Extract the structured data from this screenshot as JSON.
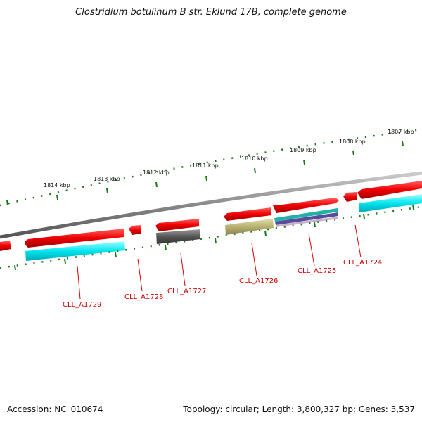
{
  "title": "Clostridium botulinum B str. Eklund 17B, complete genome",
  "footer": {
    "accession": "Accession: NC_010674",
    "topology": "Topology: circular; Length: 3,800,327 bp; Genes: 3,537"
  },
  "colors": {
    "cds": "#ee0000",
    "gene_cyan": "#00e5ee",
    "gene_gray": "#555555",
    "gene_olive": "#b8b070",
    "gene_teal": "#20b2aa",
    "gene_purple": "#5a4a9a",
    "backbone": "#888888",
    "tick": "#1a7a1a",
    "label": "#cc0000"
  },
  "tick_labels": [
    "1814 kbp",
    "1813 kbp",
    "1812 kbp",
    "1811 kbp",
    "1810 kbp",
    "1809 kbp",
    "1808 kbp",
    "1807 kbp"
  ],
  "gene_labels": [
    "CLL_A1729",
    "CLL_A1728",
    "CLL_A1727",
    "CLL_A1726",
    "CLL_A1725",
    "CLL_A1724"
  ]
}
